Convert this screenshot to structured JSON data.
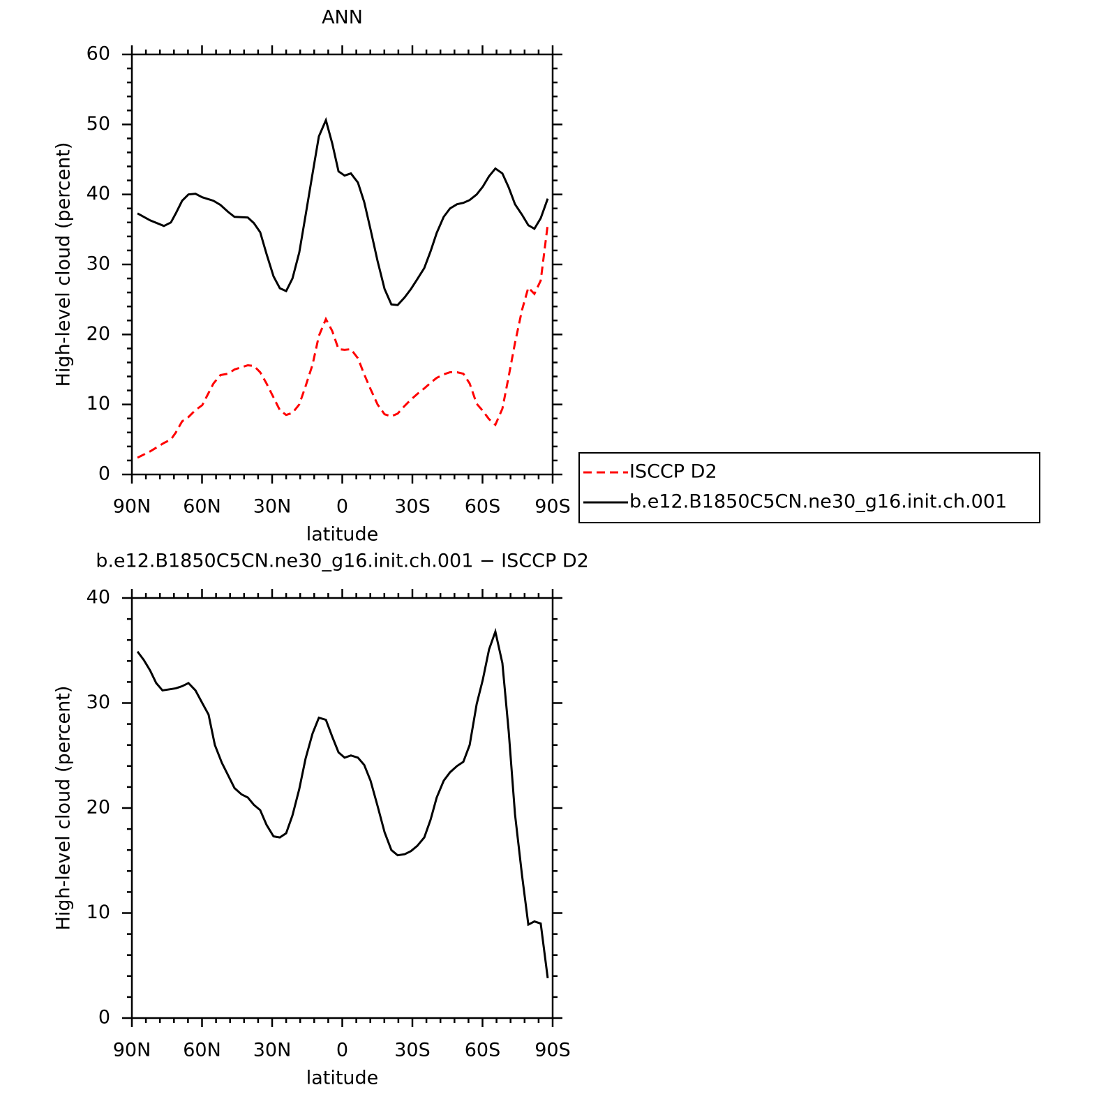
{
  "chart_data": [
    {
      "type": "line",
      "title": "ANN",
      "xlabel": "latitude",
      "ylabel": "High-level cloud (percent)",
      "xlim": [
        90,
        -90
      ],
      "xticks": [
        {
          "value": 90,
          "label": "90N"
        },
        {
          "value": 60,
          "label": "60N"
        },
        {
          "value": 30,
          "label": "30N"
        },
        0,
        {
          "value": -30,
          "label": "30S"
        },
        {
          "value": -60,
          "label": "60S"
        },
        {
          "value": -90,
          "label": "90S"
        }
      ],
      "ylim": [
        0,
        60
      ],
      "yticks": [
        0,
        10,
        20,
        30,
        40,
        50,
        60
      ],
      "legend": "right",
      "x": [
        87.6,
        82.2,
        76.3,
        73.3,
        71.2,
        68.5,
        65.8,
        62.8,
        59.9,
        55.1,
        52.1,
        48.8,
        46.1,
        40.4,
        37.8,
        35.1,
        32.4,
        29.4,
        26.7,
        24.0,
        21.3,
        18.4,
        15.7,
        12.7,
        10.0,
        7.0,
        4.3,
        1.6,
        -1.0,
        -3.7,
        -6.7,
        -9.4,
        -12.1,
        -15.1,
        -18.1,
        -21.0,
        -23.7,
        -26.7,
        -29.4,
        -32.1,
        -35.1,
        -37.8,
        -40.4,
        -43.4,
        -46.1,
        -49.1,
        -51.8,
        -54.5,
        -57.5,
        -60.1,
        -62.8,
        -65.5,
        -68.5,
        -71.2,
        -73.9,
        -76.9,
        -79.6,
        -82.2,
        -84.9,
        -87.9
      ],
      "series": [
        {
          "name": "ISCCP D2",
          "color": "#ff0000",
          "linestyle": "dashed",
          "values": [
            2.4,
            3.3,
            4.5,
            5.0,
            6.0,
            7.6,
            8.2,
            9.2,
            9.9,
            13.0,
            14.2,
            14.4,
            15.0,
            15.6,
            15.5,
            14.6,
            13.0,
            11.0,
            9.2,
            8.5,
            8.8,
            10.0,
            12.6,
            15.7,
            19.8,
            22.2,
            20.5,
            17.9,
            17.8,
            17.9,
            16.6,
            14.3,
            12.2,
            10.0,
            8.6,
            8.3,
            8.7,
            9.8,
            10.7,
            11.5,
            12.3,
            13.1,
            13.8,
            14.3,
            14.6,
            14.6,
            14.4,
            13.0,
            10.1,
            9.1,
            7.9,
            7.1,
            9.4,
            14.0,
            18.8,
            23.5,
            26.7,
            25.8,
            27.7,
            35.7
          ]
        },
        {
          "name": "b.e12.B1850C5CN.ne30_g16.init.ch.001",
          "color": "#000000",
          "linestyle": "solid",
          "values": [
            37.3,
            36.3,
            35.5,
            36.0,
            37.3,
            39.1,
            40.0,
            40.1,
            39.6,
            39.1,
            38.5,
            37.5,
            36.8,
            36.7,
            35.9,
            34.6,
            31.5,
            28.3,
            26.6,
            26.2,
            28.0,
            31.7,
            37.0,
            43.0,
            48.3,
            50.6,
            47.3,
            43.3,
            42.7,
            43.0,
            41.7,
            38.9,
            35.0,
            30.5,
            26.5,
            24.3,
            24.2,
            25.3,
            26.5,
            27.9,
            29.5,
            31.9,
            34.5,
            36.8,
            38.0,
            38.6,
            38.8,
            39.2,
            40.0,
            41.1,
            42.6,
            43.7,
            43.0,
            41.0,
            38.6,
            37.1,
            35.6,
            35.1,
            36.6,
            39.4
          ]
        }
      ]
    },
    {
      "type": "line",
      "title": "b.e12.B1850C5CN.ne30_g16.init.ch.001 − ISCCP D2",
      "xlabel": "latitude",
      "ylabel": "High-level cloud (percent)",
      "xlim": [
        90,
        -90
      ],
      "xticks": [
        {
          "value": 90,
          "label": "90N"
        },
        {
          "value": 60,
          "label": "60N"
        },
        {
          "value": 30,
          "label": "30N"
        },
        0,
        {
          "value": -30,
          "label": "30S"
        },
        {
          "value": -60,
          "label": "60S"
        },
        {
          "value": -90,
          "label": "90S"
        }
      ],
      "ylim": [
        0,
        40
      ],
      "yticks": [
        0,
        10,
        20,
        30,
        40
      ],
      "x": [
        87.6,
        84.9,
        82.2,
        79.6,
        76.9,
        71.2,
        68.5,
        65.8,
        62.8,
        59.9,
        57.2,
        54.5,
        51.5,
        48.8,
        46.1,
        43.1,
        40.4,
        37.8,
        35.1,
        32.4,
        29.4,
        26.7,
        24.0,
        21.3,
        18.4,
        15.7,
        12.7,
        10.0,
        7.0,
        4.3,
        1.6,
        -1.0,
        -3.7,
        -6.7,
        -9.4,
        -12.1,
        -15.1,
        -18.1,
        -21.0,
        -23.7,
        -26.7,
        -29.4,
        -32.1,
        -35.1,
        -37.8,
        -40.4,
        -43.4,
        -46.1,
        -49.1,
        -51.8,
        -54.5,
        -57.5,
        -60.1,
        -62.8,
        -65.5,
        -68.5,
        -71.2,
        -73.9,
        -76.9,
        -79.6,
        -82.2,
        -84.9,
        -87.9
      ],
      "series": [
        {
          "color": "#000000",
          "linestyle": "solid",
          "values": [
            34.9,
            34.1,
            33.1,
            31.9,
            31.2,
            31.4,
            31.6,
            31.9,
            31.2,
            30.0,
            28.9,
            26.0,
            24.3,
            23.1,
            21.9,
            21.3,
            21.0,
            20.3,
            19.8,
            18.4,
            17.3,
            17.2,
            17.6,
            19.3,
            21.8,
            24.7,
            27.1,
            28.6,
            28.4,
            26.8,
            25.3,
            24.8,
            25.0,
            24.8,
            24.1,
            22.6,
            20.2,
            17.7,
            16.0,
            15.5,
            15.6,
            15.9,
            16.4,
            17.2,
            18.9,
            21.0,
            22.6,
            23.4,
            24.0,
            24.4,
            26.0,
            29.9,
            32.2,
            35.1,
            36.8,
            33.8,
            27.3,
            19.4,
            13.6,
            8.9,
            9.2,
            9.0,
            3.8
          ]
        }
      ]
    }
  ]
}
